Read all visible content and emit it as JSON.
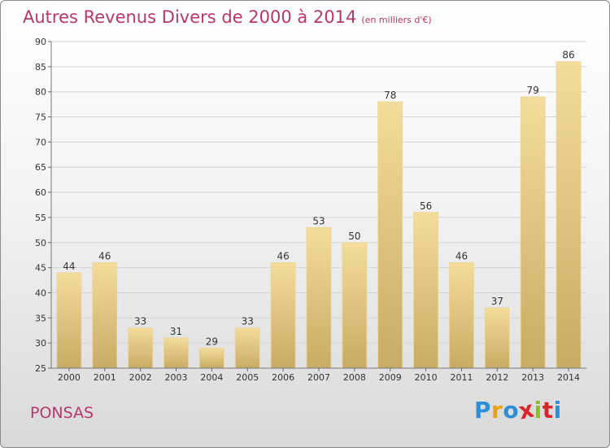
{
  "header": {
    "title": "Autres Revenus Divers de 2000 à 2014",
    "unit": "(en milliers d'€)"
  },
  "footer": {
    "commune": "PONSAS",
    "brand": [
      "P",
      "r",
      "o",
      "x",
      "i",
      "t",
      "i"
    ]
  },
  "colors": {
    "title": "#b5376b",
    "bar_top": "#f5dc9a",
    "bar_bottom": "#c8ab64",
    "brand_letters": [
      "#2f8fd6",
      "#e8a21a",
      "#2f8fd6",
      "#d9262d",
      "#8bbd2a",
      "#d9262d",
      "#2f8fd6"
    ]
  },
  "chart_data": {
    "type": "bar",
    "categories": [
      "2000",
      "2001",
      "2002",
      "2003",
      "2004",
      "2005",
      "2006",
      "2007",
      "2008",
      "2009",
      "2010",
      "2011",
      "2012",
      "2013",
      "2014"
    ],
    "values": [
      44,
      46,
      33,
      31,
      29,
      33,
      46,
      53,
      50,
      78,
      56,
      46,
      37,
      79,
      86
    ],
    "title": "Autres Revenus Divers de 2000 à 2014",
    "ylim": [
      25,
      90
    ],
    "yticks": [
      25,
      30,
      35,
      40,
      45,
      50,
      55,
      60,
      65,
      70,
      75,
      80,
      85,
      90
    ],
    "grid": true,
    "data_labels": true
  }
}
